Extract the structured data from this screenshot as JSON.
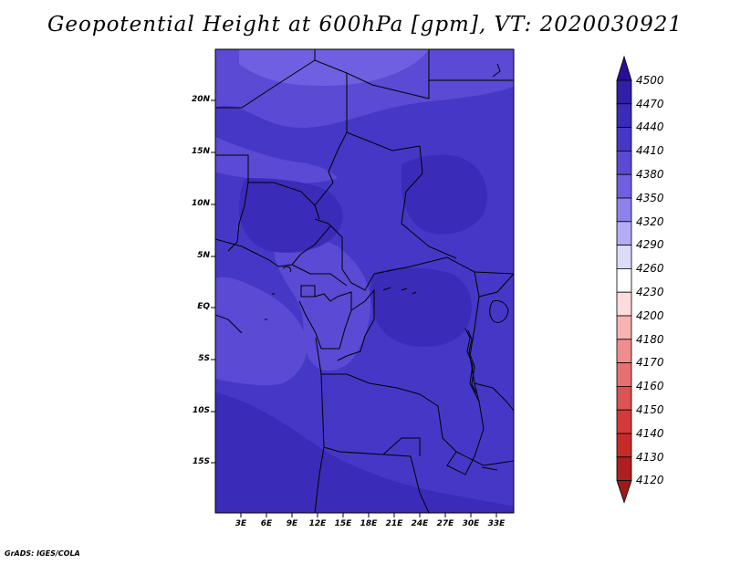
{
  "title": "Geopotential Height at 600hPa [gpm], VT: 2020030921",
  "credit": "GrADS: IGES/COLA",
  "lat_ticks": [
    "20N",
    "15N",
    "10N",
    "5N",
    "EQ",
    "5S",
    "10S",
    "15S"
  ],
  "lon_ticks": [
    "3E",
    "6E",
    "9E",
    "12E",
    "15E",
    "18E",
    "21E",
    "24E",
    "27E",
    "30E",
    "33E"
  ],
  "colorbar": {
    "levels": [
      "4500",
      "4470",
      "4440",
      "4410",
      "4380",
      "4350",
      "4320",
      "4290",
      "4260",
      "4230",
      "4200",
      "4180",
      "4170",
      "4160",
      "4150",
      "4140",
      "4130",
      "4120"
    ],
    "colors": [
      "#2a0f96",
      "#3020a8",
      "#3a2cb8",
      "#4638c6",
      "#5a4ad4",
      "#6e60e0",
      "#8c82ec",
      "#b4acf4",
      "#dcdcfa",
      "#ffffff",
      "#fcdcdc",
      "#f7b2b2",
      "#ef8d8d",
      "#e67070",
      "#dd5252",
      "#d53a3a",
      "#c82a2a",
      "#b01f1f",
      "#a01818"
    ]
  },
  "field_colors": {
    "c4380": "#5a4ad4",
    "c4410": "#4638c6",
    "c4440": "#3a2cb8",
    "c4350": "#6e60e0"
  }
}
